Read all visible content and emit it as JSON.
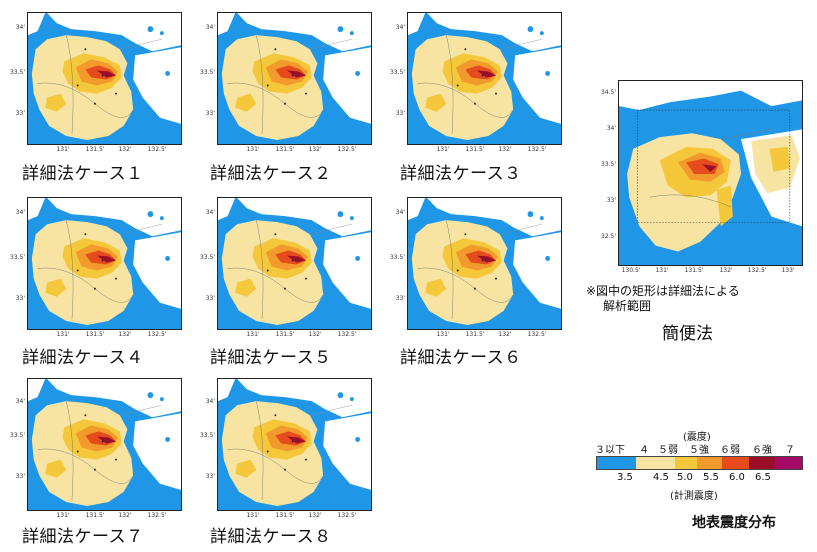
{
  "detail_cases": [
    {
      "caption": "詳細法ケース１"
    },
    {
      "caption": "詳細法ケース２"
    },
    {
      "caption": "詳細法ケース３"
    },
    {
      "caption": "詳細法ケース４"
    },
    {
      "caption": "詳細法ケース５"
    },
    {
      "caption": "詳細法ケース６"
    },
    {
      "caption": "詳細法ケース７"
    },
    {
      "caption": "詳細法ケース８"
    }
  ],
  "detail_axes": {
    "y_ticks": [
      "34'",
      "33.5'",
      "33'"
    ],
    "x_ticks": [
      "131'",
      "131.5'",
      "132'",
      "132.5'"
    ]
  },
  "simple_method": {
    "caption": "簡便法",
    "note_line1": "※図中の矩形は詳細法による",
    "note_line2": "解析範囲",
    "y_ticks": [
      "34.5'",
      "34'",
      "33.5'",
      "33'",
      "32.5'"
    ],
    "x_ticks": [
      "130.5'",
      "131'",
      "131.5'",
      "132'",
      "132.5'",
      "133'"
    ]
  },
  "legend": {
    "header": "(震度)",
    "intensity_classes": [
      "３以下",
      "４",
      "５弱",
      "５強",
      "６弱",
      "６強",
      "７"
    ],
    "measured_values": [
      "3.5",
      "4.5",
      "5.0",
      "5.5",
      "6.0",
      "6.5"
    ],
    "footer": "(計測震度)",
    "colors": [
      "#1f97e6",
      "#f8e4a2",
      "#f5c73a",
      "#f29b2c",
      "#e64b1e",
      "#9a0e2a",
      "#a50a66"
    ]
  },
  "figure_title": "地表震度分布"
}
